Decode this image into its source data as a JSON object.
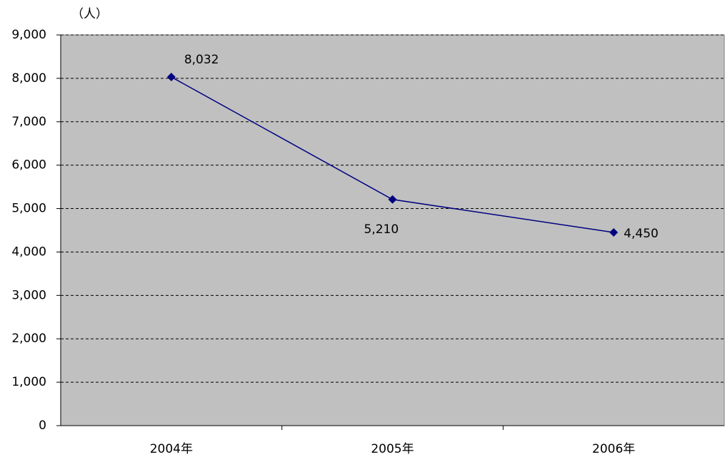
{
  "chart_data": {
    "type": "line",
    "y_axis_label": "（人）",
    "categories": [
      "2004年",
      "2005年",
      "2006年"
    ],
    "series": [
      {
        "name": null,
        "color": "#000080",
        "values": [
          8032,
          5210,
          4450
        ],
        "value_labels": [
          "8,032",
          "5,210",
          "4,450"
        ]
      }
    ],
    "ylim": [
      0,
      9000
    ],
    "yticks": [
      0,
      {
        "value": 1000,
        "label": "1,000"
      },
      {
        "value": 2000,
        "label": "2,000"
      },
      {
        "value": 3000,
        "label": "3,000"
      },
      {
        "value": 4000,
        "label": "4,000"
      },
      {
        "value": 5000,
        "label": "5,000"
      },
      {
        "value": 6000,
        "label": "6,000"
      },
      {
        "value": 7000,
        "label": "7,000"
      },
      {
        "value": 8000,
        "label": "8,000"
      },
      {
        "value": 9000,
        "label": "9,000"
      }
    ],
    "grid": true,
    "plot_background": "#c0c0c0"
  }
}
